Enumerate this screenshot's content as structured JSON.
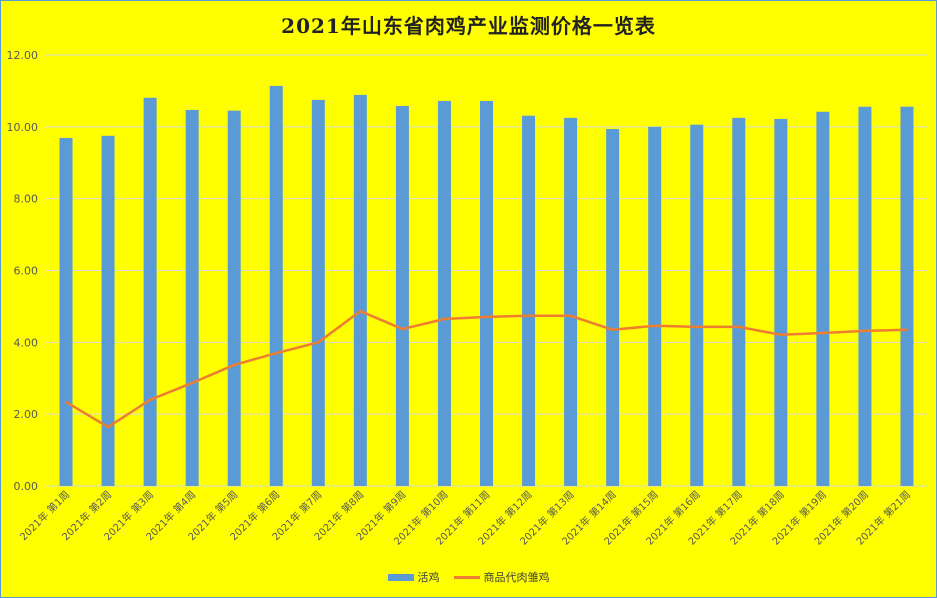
{
  "chart_data": {
    "type": "bar",
    "title": "2021年山东省肉鸡产业监测价格一览表",
    "xlabel": "",
    "ylabel": "",
    "ylim": [
      0,
      12
    ],
    "yticks": [
      "0.00",
      "2.00",
      "4.00",
      "6.00",
      "8.00",
      "10.00",
      "12.00"
    ],
    "grid": true,
    "legend_position": "bottom",
    "categories": [
      "2021年 第1周",
      "2021年 第2周",
      "2021年 第3周",
      "2021年 第4周",
      "2021年 第5周",
      "2021年 第6周",
      "2021年 第7周",
      "2021年 第8周",
      "2021年 第9周",
      "2021年 第10周",
      "2021年 第11周",
      "2021年 第12周",
      "2021年 第13周",
      "2021年 第14周",
      "2021年 第15周",
      "2021年 第16周",
      "2021年 第17周",
      "2021年 第18周",
      "2021年 第19周",
      "2021年 第20周",
      "2021年 第21周"
    ],
    "series": [
      {
        "name": "活鸡",
        "type": "bar",
        "color": "#5b9bd5",
        "values": [
          9.69,
          9.75,
          10.81,
          10.47,
          10.45,
          11.14,
          10.75,
          10.89,
          10.58,
          10.72,
          10.72,
          10.31,
          10.25,
          9.94,
          10.0,
          10.06,
          10.25,
          10.22,
          10.42,
          10.56,
          10.56
        ]
      },
      {
        "name": "商品代肉雏鸡",
        "type": "line",
        "color": "#ed7d31",
        "values": [
          2.34,
          1.64,
          2.4,
          2.87,
          3.37,
          3.7,
          4.0,
          4.87,
          4.37,
          4.65,
          4.71,
          4.74,
          4.74,
          4.35,
          4.46,
          4.43,
          4.43,
          4.21,
          4.26,
          4.32,
          4.35
        ]
      }
    ]
  }
}
